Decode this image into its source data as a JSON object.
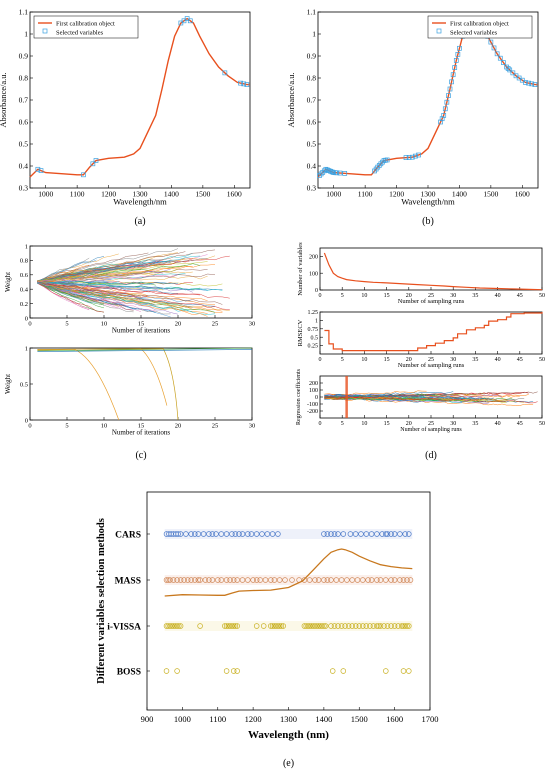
{
  "colors": {
    "calib_line": "#e8501e",
    "selected_marker": "#3aa0e0",
    "mass_curve": "#c8781e",
    "cars_marker": "#4a78c8",
    "mass_marker": "#d08858",
    "ivissa_marker": "#c8b020",
    "boss_marker": "#c8b020",
    "rmsecv_line": "#e8501e",
    "numvars_line": "#e8501e"
  },
  "chart_data": [
    {
      "id": "a",
      "type": "line",
      "panel_label": "(a)",
      "xlabel": "Wavelength/nm",
      "ylabel": "Absorbance/a.u.",
      "xlim": [
        950,
        1650
      ],
      "ylim": [
        0.3,
        1.1
      ],
      "xticks": [
        1000,
        1100,
        1200,
        1300,
        1400,
        1500,
        1600
      ],
      "yticks": [
        0.3,
        0.4,
        0.5,
        0.6,
        0.7,
        0.8,
        0.9,
        1,
        1.1
      ],
      "legend": [
        "First calibration object",
        "Selected variables"
      ],
      "legend_position": "top-left",
      "spectrum_x": [
        950,
        975,
        1000,
        1050,
        1100,
        1120,
        1140,
        1160,
        1200,
        1250,
        1280,
        1300,
        1320,
        1350,
        1370,
        1390,
        1410,
        1430,
        1450,
        1470,
        1490,
        1520,
        1550,
        1580,
        1610,
        1640,
        1650
      ],
      "spectrum_y": [
        0.35,
        0.385,
        0.37,
        0.365,
        0.36,
        0.36,
        0.395,
        0.425,
        0.435,
        0.44,
        0.455,
        0.48,
        0.54,
        0.63,
        0.75,
        0.88,
        0.99,
        1.05,
        1.07,
        1.05,
        0.99,
        0.91,
        0.85,
        0.81,
        0.78,
        0.77,
        0.77
      ],
      "selected_x": [
        975,
        985,
        1120,
        1150,
        1160,
        1430,
        1440,
        1450,
        1460,
        1570,
        1620,
        1630,
        1640
      ]
    },
    {
      "id": "b",
      "type": "line",
      "panel_label": "(b)",
      "xlabel": "Wavelength/nm",
      "ylabel": "Absorbance/a.u.",
      "xlim": [
        950,
        1650
      ],
      "ylim": [
        0.3,
        1.1
      ],
      "xticks": [
        1000,
        1100,
        1200,
        1300,
        1400,
        1500,
        1600
      ],
      "yticks": [
        0.3,
        0.4,
        0.5,
        0.6,
        0.7,
        0.8,
        0.9,
        1,
        1.1
      ],
      "legend": [
        "First calibration object",
        "Selected variables"
      ],
      "legend_position": "top-right",
      "spectrum_x": [
        950,
        975,
        1000,
        1050,
        1100,
        1120,
        1140,
        1160,
        1200,
        1250,
        1280,
        1300,
        1320,
        1350,
        1370,
        1390,
        1410,
        1430,
        1450,
        1470,
        1490,
        1520,
        1550,
        1580,
        1610,
        1640,
        1650
      ],
      "spectrum_y": [
        0.35,
        0.385,
        0.37,
        0.365,
        0.36,
        0.36,
        0.395,
        0.425,
        0.435,
        0.44,
        0.455,
        0.48,
        0.54,
        0.63,
        0.75,
        0.88,
        0.99,
        1.05,
        1.07,
        1.05,
        0.99,
        0.91,
        0.85,
        0.81,
        0.78,
        0.77,
        0.77
      ],
      "selected_x": [
        955,
        960,
        965,
        970,
        975,
        980,
        985,
        990,
        995,
        1000,
        1005,
        1010,
        1020,
        1035,
        1130,
        1135,
        1140,
        1145,
        1150,
        1155,
        1160,
        1165,
        1170,
        1230,
        1240,
        1250,
        1260,
        1270,
        1340,
        1345,
        1350,
        1355,
        1360,
        1365,
        1370,
        1375,
        1380,
        1385,
        1390,
        1395,
        1400,
        1410,
        1420,
        1430,
        1440,
        1450,
        1455,
        1460,
        1470,
        1480,
        1490,
        1500,
        1510,
        1520,
        1530,
        1540,
        1550,
        1555,
        1560,
        1570,
        1580,
        1590,
        1600,
        1610,
        1620,
        1630,
        1640
      ]
    },
    {
      "id": "c",
      "type": "line",
      "panel_label": "(c)",
      "subplots": [
        {
          "xlabel": "Number of iterations",
          "ylabel": "Weight",
          "xlim": [
            0,
            30
          ],
          "ylim": [
            0,
            1
          ],
          "xticks": [
            0,
            5,
            10,
            15,
            20,
            25,
            30
          ],
          "yticks": [
            0,
            0.2,
            0.4,
            0.6,
            0.8,
            1
          ]
        },
        {
          "xlabel": "Number of iterations",
          "ylabel": "Weight",
          "xlim": [
            0,
            30
          ],
          "ylim": [
            0,
            1
          ],
          "xticks": [
            0,
            5,
            10,
            15,
            20,
            25,
            30
          ],
          "yticks": [
            0,
            0.5,
            1
          ]
        }
      ]
    },
    {
      "id": "d",
      "type": "line",
      "panel_label": "(d)",
      "subplots": [
        {
          "xlabel": "Number of sampling runs",
          "ylabel": "Number of variables",
          "xlim": [
            0,
            50
          ],
          "ylim": [
            0,
            250
          ],
          "xticks": [
            0,
            5,
            10,
            15,
            20,
            25,
            30,
            35,
            40,
            45,
            50
          ],
          "yticks": [
            0,
            100,
            200
          ],
          "x": [
            1,
            2,
            3,
            4,
            5,
            6,
            8,
            10,
            12,
            15,
            18,
            20,
            22,
            25,
            28,
            30,
            33,
            36,
            40,
            44,
            48,
            50
          ],
          "y": [
            220,
            150,
            100,
            80,
            70,
            62,
            55,
            50,
            46,
            42,
            38,
            35,
            32,
            28,
            24,
            20,
            16,
            12,
            9,
            6,
            3,
            2
          ]
        },
        {
          "xlabel": "Number of sampling runs",
          "ylabel": "RMSECV",
          "xlim": [
            0,
            50
          ],
          "ylim": [
            0,
            1.25
          ],
          "xticks": [
            0,
            5,
            10,
            15,
            20,
            25,
            30,
            35,
            40,
            45,
            50
          ],
          "yticks": [
            0.25,
            0.5,
            0.75,
            1,
            1.25
          ],
          "x": [
            1,
            2,
            3,
            5,
            8,
            10,
            15,
            20,
            22,
            24,
            26,
            28,
            30,
            31,
            33,
            35,
            37,
            38,
            40,
            42,
            43,
            46,
            50
          ],
          "y": [
            0.7,
            0.3,
            0.15,
            0.1,
            0.1,
            0.1,
            0.1,
            0.1,
            0.18,
            0.25,
            0.32,
            0.4,
            0.48,
            0.6,
            0.72,
            0.78,
            0.85,
            0.98,
            1.02,
            1.1,
            1.2,
            1.22,
            1.25
          ]
        },
        {
          "xlabel": "Number of sampling runs",
          "ylabel": "Regression coefficients",
          "xlim": [
            0,
            50
          ],
          "ylim": [
            -300,
            300
          ],
          "xticks": [
            0,
            5,
            10,
            15,
            20,
            25,
            30,
            35,
            40,
            45,
            50
          ],
          "yticks": [
            -200,
            -100,
            0,
            100,
            200
          ],
          "optimal_run": 6
        }
      ]
    },
    {
      "id": "e",
      "type": "scatter",
      "panel_label": "(e)",
      "xlabel": "Wavelength (nm)",
      "ylabel": "Different variables selection methods",
      "xlim": [
        900,
        1700
      ],
      "xticks": [
        900,
        1000,
        1100,
        1200,
        1300,
        1400,
        1500,
        1600,
        1700
      ],
      "methods": [
        {
          "name": "CARS",
          "x": [
            955,
            962,
            968,
            975,
            982,
            988,
            995,
            1010,
            1025,
            1035,
            1045,
            1060,
            1075,
            1085,
            1095,
            1110,
            1125,
            1140,
            1150,
            1160,
            1170,
            1185,
            1195,
            1210,
            1225,
            1240,
            1255,
            1270,
            1400,
            1410,
            1420,
            1430,
            1440,
            1455,
            1475,
            1490,
            1505,
            1520,
            1535,
            1550,
            1565,
            1575,
            1580,
            1590,
            1600,
            1615,
            1630,
            1640
          ]
        },
        {
          "name": "MASS",
          "x": [
            955,
            960,
            965,
            975,
            985,
            995,
            1005,
            1015,
            1025,
            1035,
            1045,
            1050,
            1065,
            1075,
            1085,
            1100,
            1110,
            1125,
            1135,
            1145,
            1155,
            1170,
            1185,
            1200,
            1210,
            1220,
            1235,
            1250,
            1260,
            1275,
            1290,
            1310,
            1330,
            1345,
            1360,
            1375,
            1385,
            1400,
            1410,
            1420,
            1435,
            1450,
            1465,
            1480,
            1495,
            1510,
            1525,
            1535,
            1550,
            1560,
            1575,
            1590,
            1600,
            1615,
            1625,
            1635,
            1645
          ]
        },
        {
          "name": "i-VISSA",
          "x": [
            955,
            960,
            965,
            970,
            975,
            980,
            985,
            990,
            995,
            1050,
            1120,
            1125,
            1130,
            1135,
            1140,
            1145,
            1150,
            1155,
            1210,
            1230,
            1250,
            1255,
            1260,
            1265,
            1270,
            1275,
            1280,
            1285,
            1345,
            1350,
            1355,
            1360,
            1365,
            1370,
            1375,
            1380,
            1385,
            1390,
            1395,
            1400,
            1405,
            1420,
            1430,
            1440,
            1450,
            1460,
            1470,
            1480,
            1490,
            1500,
            1510,
            1520,
            1530,
            1540,
            1550,
            1555,
            1560,
            1570,
            1580,
            1590,
            1600,
            1610,
            1620,
            1625,
            1630,
            1635,
            1640
          ]
        },
        {
          "name": "BOSS",
          "x": [
            955,
            985,
            1125,
            1145,
            1155,
            1425,
            1455,
            1575,
            1625,
            1640
          ]
        }
      ],
      "overlay_curve_x": [
        950,
        1000,
        1050,
        1100,
        1120,
        1140,
        1160,
        1200,
        1250,
        1300,
        1340,
        1370,
        1400,
        1420,
        1440,
        1450,
        1460,
        1480,
        1500,
        1530,
        1560,
        1590,
        1620,
        1650
      ],
      "overlay_curve_y": [
        0.35,
        0.37,
        0.365,
        0.36,
        0.36,
        0.395,
        0.425,
        0.435,
        0.44,
        0.48,
        0.58,
        0.75,
        0.92,
        1.02,
        1.06,
        1.07,
        1.06,
        1.02,
        0.96,
        0.89,
        0.83,
        0.8,
        0.78,
        0.77
      ]
    }
  ]
}
